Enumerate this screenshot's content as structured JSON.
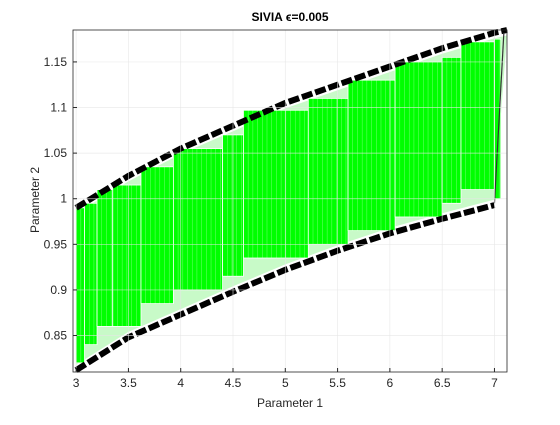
{
  "chart_data": {
    "type": "area",
    "title": "SIVIA ϵ=0.005",
    "xlabel": "Parameter 1",
    "ylabel": "Parameter 2",
    "xlim": [
      2.97,
      7.12
    ],
    "ylim": [
      0.81,
      1.185
    ],
    "xticks": [
      "3",
      "3.5",
      "4",
      "4.5",
      "5",
      "5.5",
      "6",
      "6.5",
      "7"
    ],
    "xtick_values": [
      3,
      3.5,
      4,
      4.5,
      5,
      5.5,
      6,
      6.5,
      7
    ],
    "yticks": [
      "0.85",
      "0.9",
      "0.95",
      "1",
      "1.05",
      "1.1",
      "1.15"
    ],
    "ytick_values": [
      0.85,
      0.9,
      0.95,
      1,
      1.05,
      1.1,
      1.15
    ],
    "grid": true,
    "colors": {
      "inner": "#00ff00",
      "boundary": "#000000",
      "edge": "#ffffff",
      "grid": "#e6e6e6",
      "axis": "#262626"
    },
    "series": [
      {
        "kind": "upper_boundary",
        "x": [
          3.0,
          3.5,
          4.0,
          4.5,
          5.0,
          5.5,
          6.0,
          6.5,
          7.0,
          7.12
        ],
        "values": [
          0.99,
          1.025,
          1.055,
          1.08,
          1.105,
          1.125,
          1.145,
          1.165,
          1.182,
          1.185
        ]
      },
      {
        "kind": "lower_boundary",
        "x": [
          3.0,
          3.5,
          4.0,
          4.5,
          5.0,
          5.5,
          6.0,
          6.5,
          7.0
        ],
        "values": [
          0.812,
          0.848,
          0.873,
          0.898,
          0.922,
          0.943,
          0.962,
          0.978,
          0.993
        ]
      },
      {
        "kind": "inner_boxes",
        "boxes": [
          [
            3.0,
            3.08,
            0.82,
            0.99
          ],
          [
            3.08,
            3.2,
            0.84,
            0.995
          ],
          [
            3.2,
            3.35,
            0.86,
            1.01
          ],
          [
            3.35,
            3.62,
            0.86,
            1.015
          ],
          [
            3.62,
            3.93,
            0.885,
            1.035
          ],
          [
            3.93,
            4.4,
            0.9,
            1.055
          ],
          [
            4.4,
            4.6,
            0.915,
            1.07
          ],
          [
            4.6,
            5.22,
            0.935,
            1.097
          ],
          [
            5.22,
            5.6,
            0.95,
            1.11
          ],
          [
            5.6,
            6.05,
            0.965,
            1.13
          ],
          [
            6.05,
            6.5,
            0.98,
            1.15
          ],
          [
            6.5,
            6.68,
            0.995,
            1.155
          ],
          [
            6.68,
            7.0,
            1.01,
            1.172
          ],
          [
            7.0,
            7.06,
            1.0,
            1.175
          ]
        ]
      }
    ]
  }
}
